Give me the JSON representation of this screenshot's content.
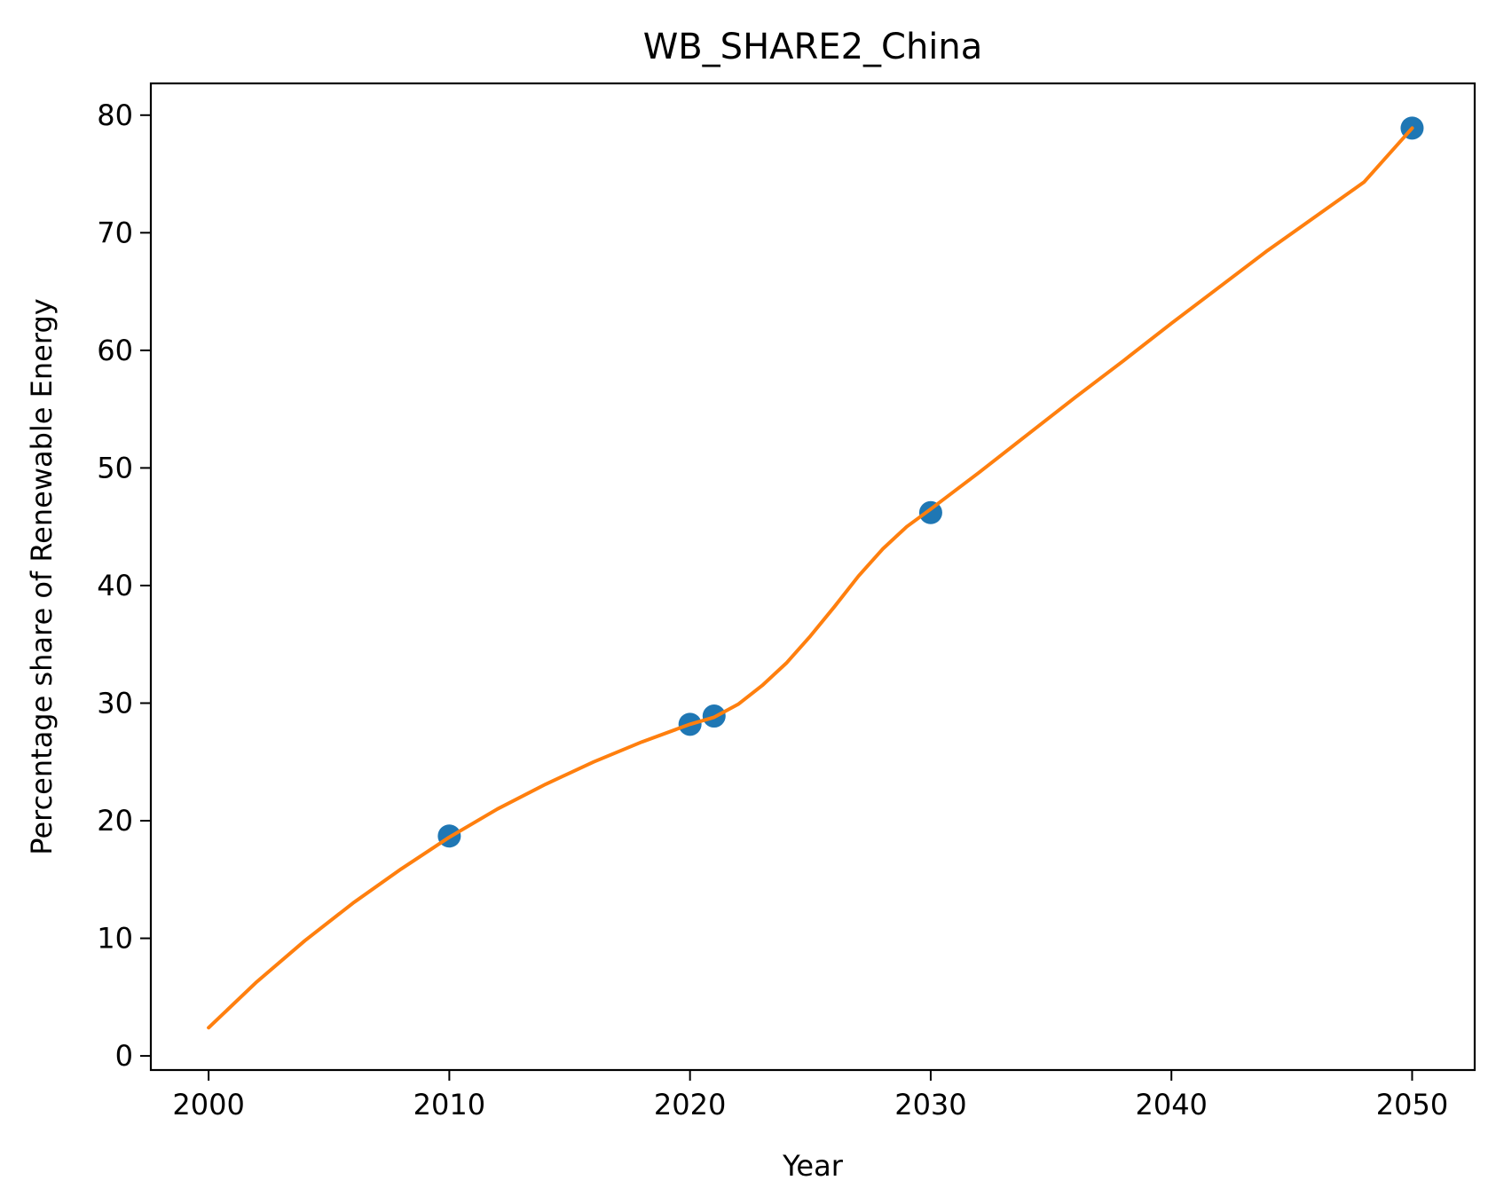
{
  "chart_data": {
    "type": "line",
    "title": "WB_SHARE2_China",
    "xlabel": "Year",
    "ylabel": "Percentage share of Renewable Energy",
    "xlim": [
      1997.6,
      2052.6
    ],
    "ylim": [
      -1.2,
      82.7
    ],
    "xticks": [
      2000,
      2010,
      2020,
      2030,
      2040,
      2050
    ],
    "yticks": [
      0,
      10,
      20,
      30,
      40,
      50,
      60,
      70,
      80
    ],
    "grid": false,
    "legend": "none",
    "series": [
      {
        "kind": "scatter",
        "color": "#1f77b4",
        "x": [
          2010,
          2020,
          2021,
          2030,
          2050
        ],
        "y": [
          18.7,
          28.2,
          28.9,
          46.2,
          78.9
        ]
      },
      {
        "kind": "line",
        "color": "#ff7f0e",
        "x": [
          2000,
          2002,
          2004,
          2006,
          2008,
          2010,
          2012,
          2014,
          2016,
          2018,
          2020,
          2021,
          2022,
          2023,
          2024,
          2025,
          2026,
          2027,
          2028,
          2029,
          2030,
          2032,
          2034,
          2036,
          2038,
          2040,
          2042,
          2044,
          2046,
          2048,
          2050
        ],
        "y": [
          2.4,
          6.3,
          9.8,
          13.0,
          15.9,
          18.6,
          21.0,
          23.1,
          25.0,
          26.7,
          28.2,
          28.8,
          29.9,
          31.5,
          33.4,
          35.7,
          38.2,
          40.8,
          43.1,
          45.0,
          46.5,
          49.6,
          52.8,
          56.0,
          59.1,
          62.3,
          65.4,
          68.5,
          71.4,
          74.3,
          78.9
        ]
      }
    ]
  }
}
